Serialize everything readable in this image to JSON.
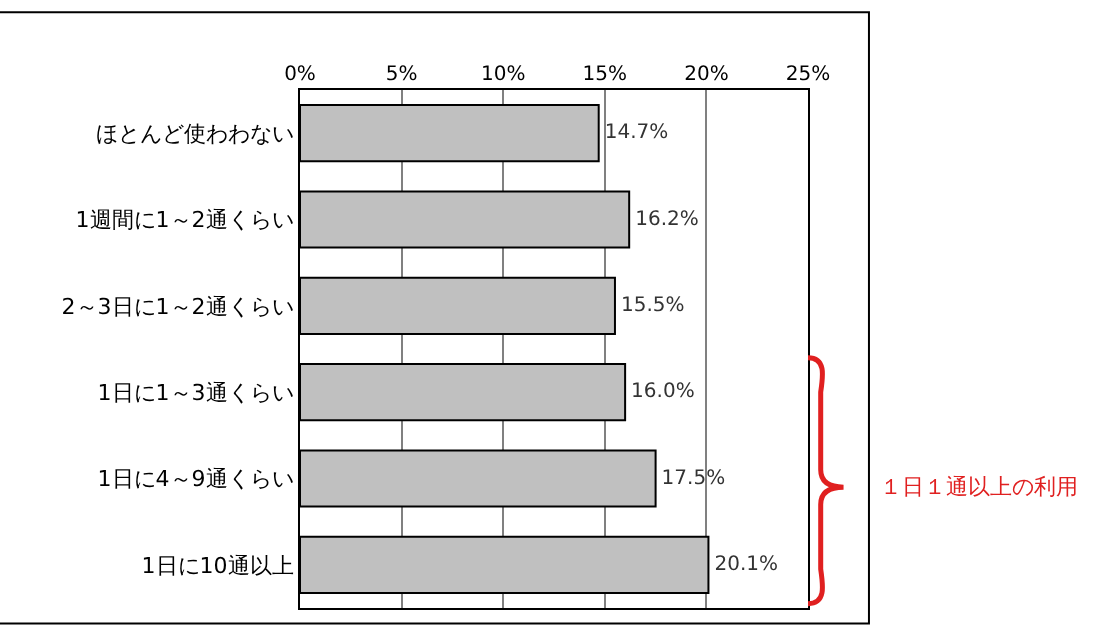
{
  "chart_data": {
    "type": "bar",
    "orientation": "horizontal",
    "categories": [
      "ほとんど使わわない",
      "1週間に1～2通くらい",
      "2～3日に1～2通くらい",
      "1日に1～3通くらい",
      "1日に4～9通くらい",
      "1日に10通以上"
    ],
    "series": [
      {
        "color": "#c0c0c0",
        "values": [
          14.7,
          16.2,
          15.5,
          16.0,
          17.5,
          20.1
        ],
        "value_labels": [
          "14.7%",
          "16.2%",
          "15.5%",
          "16.0%",
          "17.5%",
          "20.1%"
        ]
      }
    ],
    "xlim": [
      0,
      25
    ],
    "xticks": [
      {
        "value": 0,
        "label": "0%"
      },
      {
        "value": 5,
        "label": "5%"
      },
      {
        "value": 10,
        "label": "10%"
      },
      {
        "value": 15,
        "label": "15%"
      },
      {
        "value": 20,
        "label": "20%"
      },
      {
        "value": 25,
        "label": "25%"
      }
    ],
    "grid": "x",
    "legend": false,
    "annotations": [
      "１日１通以上の利用"
    ]
  }
}
